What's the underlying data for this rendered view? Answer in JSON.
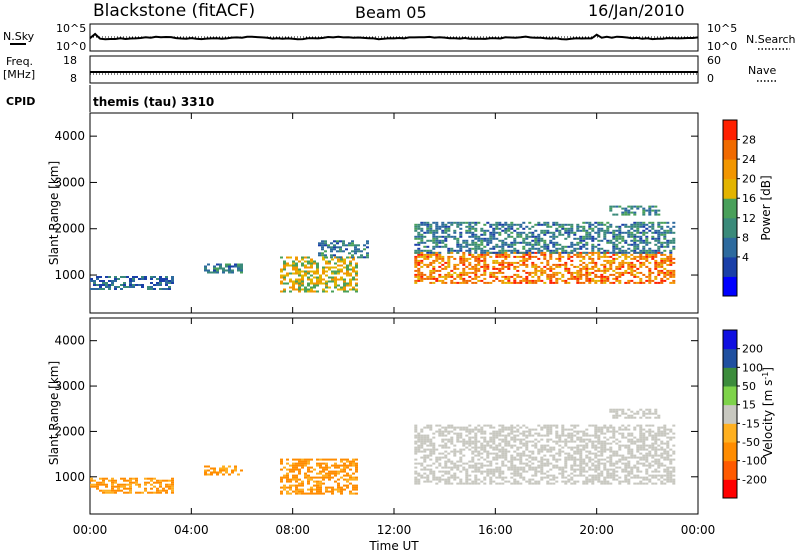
{
  "header": {
    "station": "Blackstone (fitACF)",
    "beam": "Beam 05",
    "date": "16/Jan/2010"
  },
  "status_panels": {
    "nsky_label": "N.Sky",
    "nsky_ticks": [
      "10^5",
      "10^0"
    ],
    "nsearch_label": "N.Search",
    "nsearch_ticks": [
      "10^5",
      "10^0"
    ],
    "freq_label_1": "Freq.",
    "freq_label_2": "[MHz]",
    "freq_ticks": [
      "18",
      "8"
    ],
    "nave_label": "Nave",
    "nave_ticks": [
      "60",
      "0"
    ],
    "cpid_label": "CPID",
    "cpid_value": "themis (tau) 3310"
  },
  "xaxis": {
    "label": "Time UT",
    "ticks": [
      "00:00",
      "04:00",
      "08:00",
      "12:00",
      "16:00",
      "20:00",
      "00:00"
    ]
  },
  "colors": {
    "power_scale": [
      "#0000ff",
      "#1a3fa8",
      "#2d6a9e",
      "#3a8a7a",
      "#49a05a",
      "#e3b400",
      "#f29600",
      "#f06a00",
      "#ff2000"
    ],
    "velocity_scale": [
      "#ff0000",
      "#ff5a00",
      "#ff8c00",
      "#ffb020",
      "#c8c8c0",
      "#7ed34a",
      "#3c8c3c",
      "#2050a0",
      "#1010e0"
    ]
  },
  "chart_data": [
    {
      "type": "heatmap",
      "title": "Power",
      "ylabel": "Slant Range [km]",
      "xlabel": "",
      "colorbar_label": "Power [dB]",
      "colorbar_ticks": [
        "28",
        "24",
        "20",
        "16",
        "12",
        "8",
        "4"
      ],
      "xlim_hours": [
        0,
        24
      ],
      "ylim": [
        180,
        4500
      ],
      "yticks": [
        "4000",
        "3000",
        "2000",
        "1000"
      ],
      "regions": [
        {
          "x": [
            0.0,
            3.2
          ],
          "y": [
            700,
            980
          ],
          "level": 8
        },
        {
          "x": [
            4.5,
            6.0
          ],
          "y": [
            1050,
            1250
          ],
          "level": 10
        },
        {
          "x": [
            7.5,
            10.5
          ],
          "y": [
            650,
            1400
          ],
          "level": 20
        },
        {
          "x": [
            9.0,
            11.0
          ],
          "y": [
            1400,
            1750
          ],
          "level": 10
        },
        {
          "x": [
            12.8,
            23.0
          ],
          "y": [
            850,
            1500
          ],
          "level": 26
        },
        {
          "x": [
            12.8,
            23.0
          ],
          "y": [
            1500,
            2150
          ],
          "level": 10
        },
        {
          "x": [
            20.5,
            22.5
          ],
          "y": [
            2300,
            2500
          ],
          "level": 12
        }
      ]
    },
    {
      "type": "heatmap",
      "title": "Velocity",
      "ylabel": "Slant Range [km]",
      "xlabel": "Time UT",
      "colorbar_label": "Velocity [m s^-1]",
      "colorbar_ticks": [
        "200",
        "100",
        "50",
        "15",
        "-15",
        "-50",
        "-100",
        "-200"
      ],
      "xlim_hours": [
        0,
        24
      ],
      "ylim": [
        180,
        4500
      ],
      "yticks": [
        "4000",
        "3000",
        "2000",
        "1000"
      ],
      "regions": [
        {
          "x": [
            0.0,
            3.2
          ],
          "y": [
            650,
            980
          ],
          "velocity": -60
        },
        {
          "x": [
            4.5,
            6.0
          ],
          "y": [
            1050,
            1250
          ],
          "velocity": -60
        },
        {
          "x": [
            7.5,
            10.5
          ],
          "y": [
            650,
            1400
          ],
          "velocity": -60
        },
        {
          "x": [
            12.8,
            23.0
          ],
          "y": [
            850,
            2150
          ],
          "velocity": 0
        },
        {
          "x": [
            20.5,
            22.5
          ],
          "y": [
            2300,
            2500
          ],
          "velocity": 0
        }
      ]
    }
  ]
}
